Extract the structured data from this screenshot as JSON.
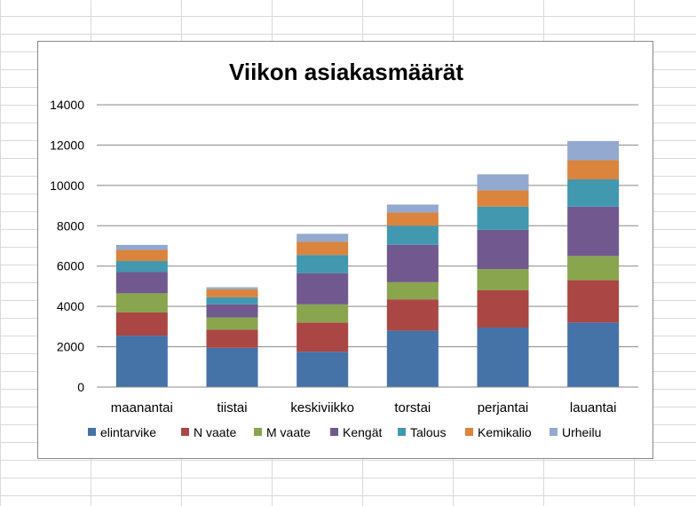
{
  "chart_data": {
    "type": "bar",
    "stacked": true,
    "title": "Viikon asiakasmäärät",
    "xlabel": "",
    "ylabel": "",
    "categories": [
      "maanantai",
      "tiistai",
      "keskiviikko",
      "torstai",
      "perjantai",
      "lauantai"
    ],
    "ylim": [
      0,
      14000
    ],
    "yticks": [
      "0",
      "2000",
      "4000",
      "6000",
      "8000",
      "10000",
      "12000",
      "14000"
    ],
    "grid": true,
    "legend": "bottom",
    "series": [
      {
        "name": "elintarvike",
        "color": "#4572A7",
        "values": [
          2550,
          1950,
          1750,
          2800,
          2950,
          3200
        ]
      },
      {
        "name": "N vaate",
        "color": "#AA4643",
        "values": [
          1150,
          900,
          1450,
          1550,
          1850,
          2100
        ]
      },
      {
        "name": "M vaate",
        "color": "#89A54E",
        "values": [
          950,
          600,
          900,
          850,
          1050,
          1200
        ]
      },
      {
        "name": "Kengät",
        "color": "#71588F",
        "values": [
          1050,
          650,
          1550,
          1850,
          1950,
          2450
        ]
      },
      {
        "name": "Talous",
        "color": "#4198AF",
        "values": [
          550,
          350,
          900,
          950,
          1150,
          1350
        ]
      },
      {
        "name": "Kemikalio",
        "color": "#DB843D",
        "values": [
          550,
          400,
          650,
          650,
          800,
          950
        ]
      },
      {
        "name": "Urheilu",
        "color": "#93A9CF",
        "values": [
          250,
          100,
          400,
          400,
          800,
          950
        ]
      }
    ]
  }
}
